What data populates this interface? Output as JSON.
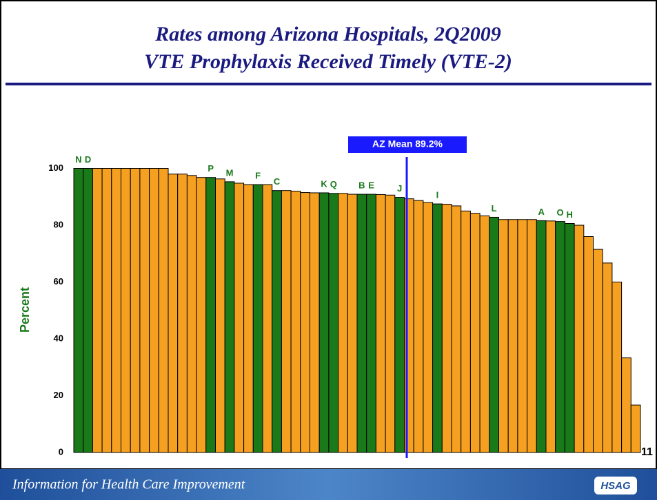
{
  "chart_data": {
    "type": "bar",
    "title": [
      "Rates among Arizona Hospitals, 2Q2009",
      "VTE Prophylaxis Received Timely (VTE-2)"
    ],
    "y_label": "Percent",
    "annotation": "AZ Mean 89.2%",
    "categories": [
      "N",
      "D",
      null,
      null,
      null,
      null,
      null,
      null,
      null,
      null,
      null,
      null,
      null,
      null,
      "P",
      null,
      "M",
      null,
      null,
      "F",
      null,
      "C",
      null,
      null,
      null,
      null,
      "K",
      "Q",
      null,
      null,
      "B",
      "E",
      null,
      null,
      "J",
      null,
      null,
      null,
      "I",
      null,
      null,
      null,
      null,
      null,
      "L",
      null,
      null,
      null,
      null,
      "A",
      null,
      "O",
      "H",
      null,
      null,
      null,
      null,
      null,
      null,
      null
    ],
    "values": [
      100,
      100,
      100,
      100,
      100,
      100,
      100,
      100,
      100,
      100,
      98,
      98,
      97.5,
      96.8,
      96.8,
      96.3,
      95.3,
      94.8,
      94.3,
      94.3,
      94.3,
      92.2,
      92.2,
      92,
      91.5,
      91.4,
      91.4,
      91.2,
      91.2,
      90.9,
      90.9,
      90.9,
      90.8,
      90.6,
      89.8,
      89.3,
      88.7,
      88,
      87.5,
      87.4,
      86.8,
      85,
      84.2,
      83.3,
      82.8,
      82,
      82,
      82,
      82,
      81.6,
      81.5,
      81.3,
      80.6,
      80,
      76,
      71.5,
      66.7,
      60,
      33.3,
      16.7
    ],
    "colors": [
      "#1a7a1a",
      "#1a7a1a",
      "#f5a020",
      "#f5a020",
      "#f5a020",
      "#f5a020",
      "#f5a020",
      "#f5a020",
      "#f5a020",
      "#f5a020",
      "#f5a020",
      "#f5a020",
      "#f5a020",
      "#f5a020",
      "#1a7a1a",
      "#f5a020",
      "#1a7a1a",
      "#f5a020",
      "#f5a020",
      "#1a7a1a",
      "#f5a020",
      "#1a7a1a",
      "#f5a020",
      "#f5a020",
      "#f5a020",
      "#f5a020",
      "#1a7a1a",
      "#1a7a1a",
      "#f5a020",
      "#f5a020",
      "#1a7a1a",
      "#1a7a1a",
      "#f5a020",
      "#f5a020",
      "#1a7a1a",
      "#f5a020",
      "#f5a020",
      "#f5a020",
      "#1a7a1a",
      "#f5a020",
      "#f5a020",
      "#f5a020",
      "#f5a020",
      "#f5a020",
      "#1a7a1a",
      "#f5a020",
      "#f5a020",
      "#f5a020",
      "#f5a020",
      "#1a7a1a",
      "#f5a020",
      "#1a7a1a",
      "#1a7a1a",
      "#f5a020",
      "#f5a020",
      "#f5a020",
      "#f5a020",
      "#f5a020",
      "#f5a020",
      "#f5a020"
    ],
    "ylim": [
      0,
      104
    ],
    "yticks": [
      0,
      20,
      40,
      60,
      80,
      100
    ]
  },
  "footer": {
    "tagline": "Information for Health Care Improvement",
    "logo": "HSAG",
    "page_number": "11"
  }
}
